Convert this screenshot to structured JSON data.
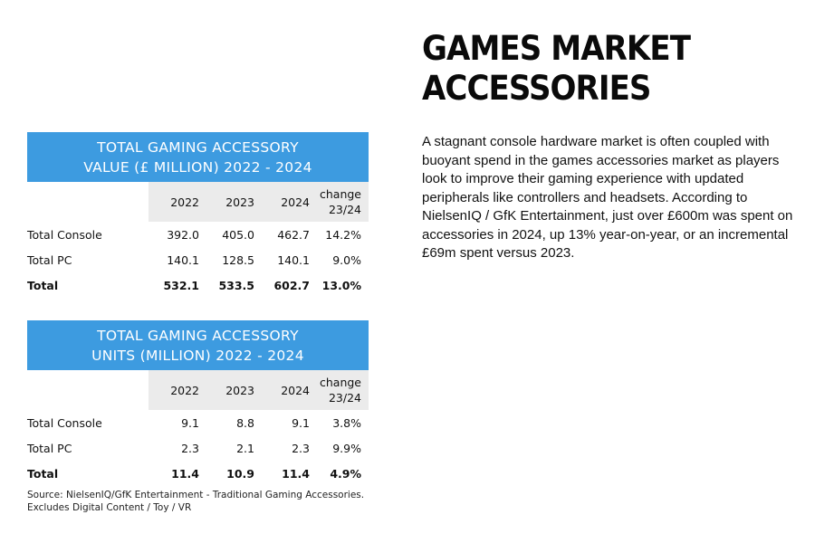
{
  "article": {
    "title_line1": "GAMES MARKET",
    "title_line2": "ACCESSORIES",
    "body": "A stagnant console hardware market is often coupled with buoyant spend in the games accessories market as players look to improve their gaming experience with updated peripherals like controllers and headsets. According to NielsenIQ / GfK Entertainment, just over £600m was spent on accessories in 2024, up 13% year-on-year, or an incremental £69m spent versus 2023."
  },
  "value_table": {
    "title_line1": "TOTAL GAMING ACCESSORY",
    "title_line2": "VALUE (£ MILLION) 2022 - 2024",
    "columns": [
      "2022",
      "2023",
      "2024",
      "change",
      "23/24"
    ],
    "rows": [
      {
        "label": "Total Console",
        "v2022": "392.0",
        "v2023": "405.0",
        "v2024": "462.7",
        "change": "14.2%"
      },
      {
        "label": "Total PC",
        "v2022": "140.1",
        "v2023": "128.5",
        "v2024": "140.1",
        "change": "9.0%"
      },
      {
        "label": "Total",
        "v2022": "532.1",
        "v2023": "533.5",
        "v2024": "602.7",
        "change": "13.0%"
      }
    ]
  },
  "units_table": {
    "title_line1": "TOTAL GAMING ACCESSORY",
    "title_line2": "UNITS (MILLION) 2022 - 2024",
    "columns": [
      "2022",
      "2023",
      "2024",
      "change",
      "23/24"
    ],
    "rows": [
      {
        "label": "Total Console",
        "v2022": "9.1",
        "v2023": "8.8",
        "v2024": "9.1",
        "change": "3.8%"
      },
      {
        "label": "Total PC",
        "v2022": "2.3",
        "v2023": "2.1",
        "v2024": "2.3",
        "change": "9.9%"
      },
      {
        "label": "Total",
        "v2022": "11.4",
        "v2023": "10.9",
        "v2024": "11.4",
        "change": "4.9%"
      }
    ]
  },
  "source": {
    "line1": "Source: NielsenIQ/GfK Entertainment - Traditional Gaming Accessories.",
    "line2": "Excludes Digital Content / Toy / VR"
  },
  "colors": {
    "table_header": "#3d9be0",
    "column_header_bg": "#ebebeb"
  }
}
